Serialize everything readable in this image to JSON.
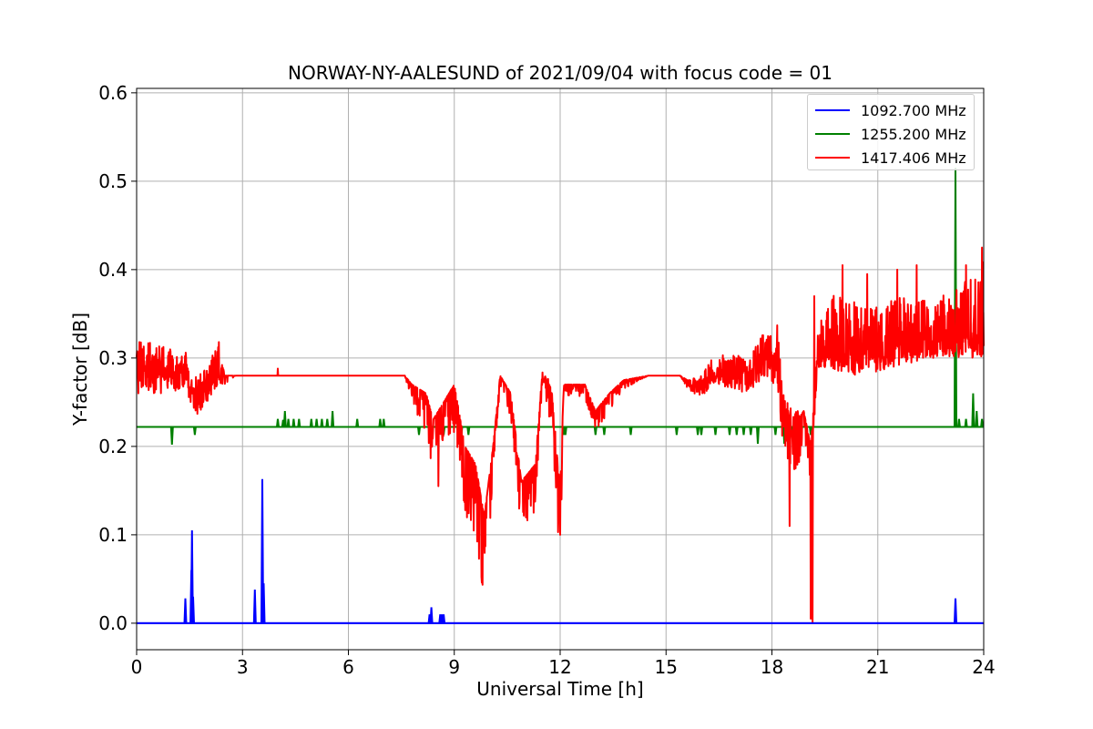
{
  "chart_data": {
    "type": "line",
    "title": "NORWAY-NY-AALESUND of 2021/09/04 with focus code = 01",
    "xlabel": "Universal Time [h]",
    "ylabel": "Y-factor [dB]",
    "xlim": [
      0,
      24
    ],
    "ylim": [
      -0.03,
      0.605
    ],
    "xticks": [
      "0",
      "3",
      "6",
      "9",
      "12",
      "15",
      "18",
      "21",
      "24"
    ],
    "yticks": [
      "0.0",
      "0.1",
      "0.2",
      "0.3",
      "0.4",
      "0.5",
      "0.6"
    ],
    "grid": true,
    "legend_position": "top-right",
    "series": [
      {
        "name": "1092.700 MHz",
        "color": "#0000ff",
        "baseline": 0.0,
        "spikes": [
          [
            1.38,
            0.028
          ],
          [
            1.55,
            0.06
          ],
          [
            1.57,
            0.105
          ],
          [
            1.6,
            0.03
          ],
          [
            3.35,
            0.038
          ],
          [
            3.56,
            0.163
          ],
          [
            3.6,
            0.045
          ],
          [
            8.3,
            0.01
          ],
          [
            8.35,
            0.018
          ],
          [
            8.6,
            0.01
          ],
          [
            8.65,
            0.01
          ],
          [
            8.7,
            0.01
          ],
          [
            23.2,
            0.028
          ]
        ]
      },
      {
        "name": "1255.200 MHz",
        "color": "#008000",
        "baseline": 0.222,
        "spikes": [
          [
            1.0,
            0.202
          ],
          [
            1.65,
            0.213
          ],
          [
            4.0,
            0.231
          ],
          [
            4.15,
            0.23
          ],
          [
            4.2,
            0.24
          ],
          [
            4.3,
            0.231
          ],
          [
            4.45,
            0.231
          ],
          [
            4.6,
            0.231
          ],
          [
            4.95,
            0.231
          ],
          [
            5.1,
            0.231
          ],
          [
            5.25,
            0.231
          ],
          [
            5.4,
            0.231
          ],
          [
            5.55,
            0.24
          ],
          [
            6.25,
            0.231
          ],
          [
            6.9,
            0.231
          ],
          [
            7.0,
            0.231
          ],
          [
            8.0,
            0.213
          ],
          [
            8.3,
            0.213
          ],
          [
            8.55,
            0.213
          ],
          [
            8.7,
            0.213
          ],
          [
            9.2,
            0.213
          ],
          [
            9.4,
            0.213
          ],
          [
            12.1,
            0.213
          ],
          [
            12.15,
            0.213
          ],
          [
            13.0,
            0.213
          ],
          [
            13.25,
            0.213
          ],
          [
            14.0,
            0.213
          ],
          [
            15.3,
            0.213
          ],
          [
            15.9,
            0.213
          ],
          [
            16.0,
            0.213
          ],
          [
            16.4,
            0.213
          ],
          [
            16.8,
            0.213
          ],
          [
            17.0,
            0.213
          ],
          [
            17.2,
            0.213
          ],
          [
            17.4,
            0.213
          ],
          [
            17.6,
            0.203
          ],
          [
            18.1,
            0.213
          ],
          [
            18.35,
            0.203
          ],
          [
            18.6,
            0.213
          ],
          [
            18.8,
            0.213
          ],
          [
            19.1,
            0.213
          ],
          [
            23.2,
            0.515
          ],
          [
            23.3,
            0.231
          ],
          [
            23.5,
            0.231
          ],
          [
            23.7,
            0.26
          ],
          [
            23.8,
            0.24
          ],
          [
            23.95,
            0.231
          ]
        ]
      },
      {
        "name": "1417.406 MHz",
        "color": "#ff0000",
        "profile": [
          [
            0.0,
            0.28,
            0.02,
            0.04
          ],
          [
            1.4,
            0.28,
            0.02,
            0.03
          ],
          [
            1.5,
            0.255,
            0.03,
            0.02
          ],
          [
            2.0,
            0.27,
            0.02,
            0.02
          ],
          [
            2.3,
            0.28,
            0.01,
            0.04
          ],
          [
            2.5,
            0.28,
            0.01,
            0.0
          ],
          [
            2.8,
            0.28,
            0.0,
            0.0
          ],
          [
            7.6,
            0.28,
            0.0,
            0.0
          ],
          [
            7.8,
            0.27,
            0.02,
            0.0
          ],
          [
            8.2,
            0.26,
            0.05,
            0.0
          ],
          [
            8.4,
            0.23,
            0.06,
            0.0
          ],
          [
            8.7,
            0.25,
            0.04,
            0.0
          ],
          [
            9.0,
            0.27,
            0.06,
            0.0
          ],
          [
            9.3,
            0.2,
            0.08,
            0.0
          ],
          [
            9.6,
            0.18,
            0.08,
            0.0
          ],
          [
            9.85,
            0.12,
            0.1,
            0.0
          ],
          [
            10.1,
            0.2,
            0.06,
            0.0
          ],
          [
            10.3,
            0.28,
            0.01,
            0.0
          ],
          [
            10.6,
            0.26,
            0.03,
            0.0
          ],
          [
            10.9,
            0.16,
            0.06,
            0.0
          ],
          [
            11.3,
            0.18,
            0.05,
            0.0
          ],
          [
            11.5,
            0.28,
            0.01,
            0.01
          ],
          [
            11.75,
            0.26,
            0.04,
            0.01
          ],
          [
            12.0,
            0.14,
            0.08,
            0.01
          ],
          [
            12.1,
            0.27,
            0.01,
            0.0
          ],
          [
            12.7,
            0.27,
            0.02,
            0.0
          ],
          [
            13.0,
            0.24,
            0.03,
            0.0
          ],
          [
            13.4,
            0.26,
            0.02,
            0.0
          ],
          [
            13.8,
            0.275,
            0.01,
            0.0
          ],
          [
            14.5,
            0.28,
            0.0,
            0.0
          ],
          [
            15.4,
            0.28,
            0.0,
            0.0
          ],
          [
            15.6,
            0.275,
            0.01,
            0.0
          ],
          [
            16.0,
            0.27,
            0.015,
            0.01
          ],
          [
            16.3,
            0.28,
            0.01,
            0.02
          ],
          [
            16.8,
            0.285,
            0.02,
            0.02
          ],
          [
            17.3,
            0.28,
            0.02,
            0.02
          ],
          [
            17.8,
            0.29,
            0.01,
            0.04
          ],
          [
            18.2,
            0.29,
            0.03,
            0.03
          ],
          [
            18.3,
            0.24,
            0.05,
            0.02
          ],
          [
            18.6,
            0.22,
            0.05,
            0.02
          ],
          [
            18.9,
            0.24,
            0.05,
            0.0
          ],
          [
            19.1,
            0.2,
            0.04,
            0.0
          ],
          [
            19.3,
            0.3,
            0.01,
            0.05
          ],
          [
            19.8,
            0.305,
            0.02,
            0.07
          ],
          [
            20.5,
            0.3,
            0.02,
            0.06
          ],
          [
            21.5,
            0.31,
            0.02,
            0.06
          ],
          [
            22.5,
            0.32,
            0.02,
            0.05
          ],
          [
            23.3,
            0.32,
            0.02,
            0.06
          ],
          [
            24.0,
            0.33,
            0.03,
            0.08
          ]
        ],
        "extremes": [
          [
            0.08,
            0.318
          ],
          [
            2.33,
            0.318
          ],
          [
            4.0,
            0.288
          ],
          [
            8.55,
            0.155
          ],
          [
            9.88,
            0.087
          ],
          [
            10.05,
            0.14
          ],
          [
            11.25,
            0.125
          ],
          [
            11.95,
            0.132
          ],
          [
            12.0,
            0.1
          ],
          [
            18.5,
            0.11
          ],
          [
            18.15,
            0.337
          ],
          [
            19.1,
            0.005
          ],
          [
            19.15,
            0.0
          ],
          [
            19.2,
            0.37
          ],
          [
            20.0,
            0.405
          ],
          [
            20.7,
            0.395
          ],
          [
            21.55,
            0.4
          ],
          [
            22.1,
            0.405
          ],
          [
            23.5,
            0.405
          ],
          [
            23.95,
            0.425
          ]
        ]
      }
    ]
  }
}
